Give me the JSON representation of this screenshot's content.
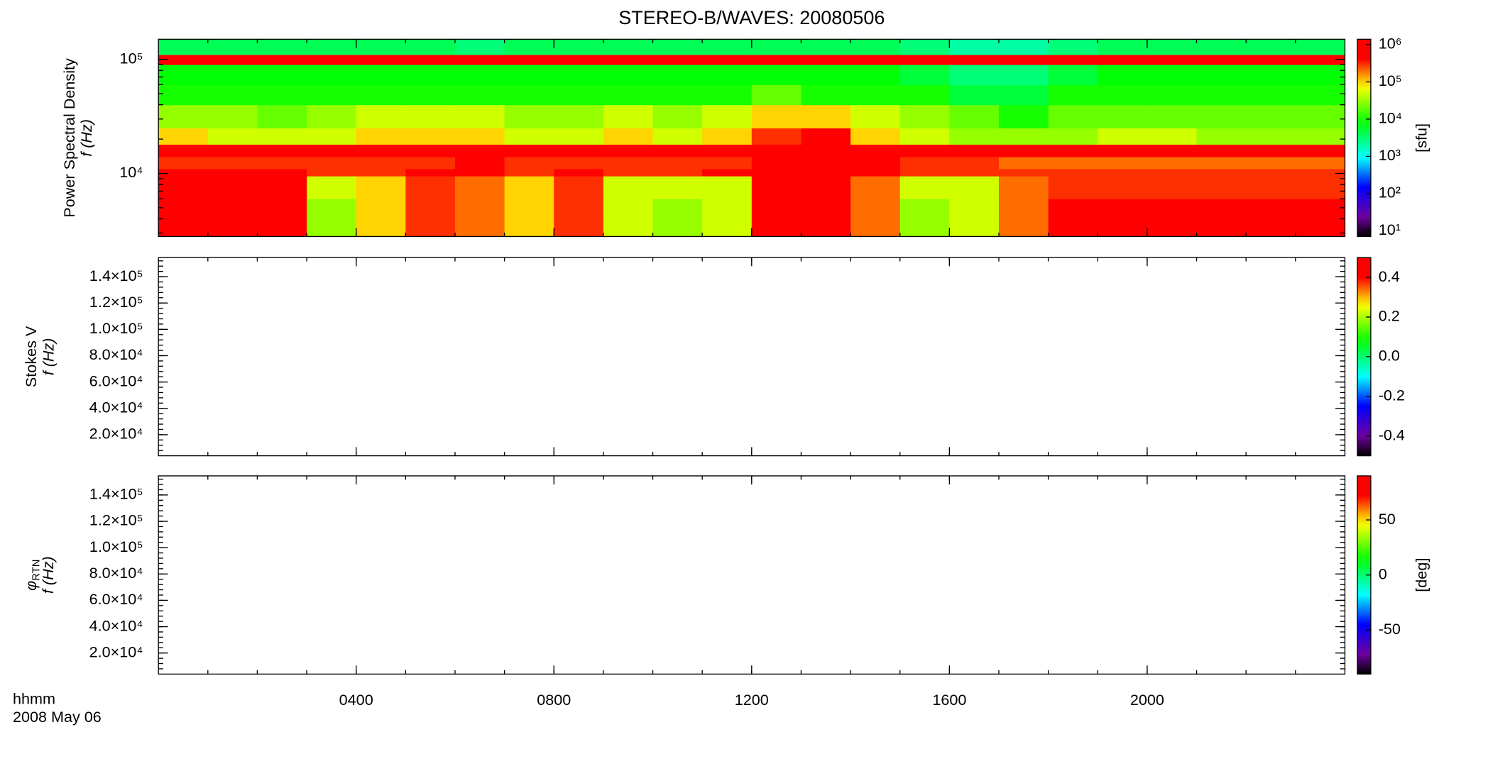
{
  "title": "STEREO-B/WAVES: 20080506",
  "x_label": [
    "hhmm",
    "2008 May 06"
  ],
  "chart_data": [
    {
      "type": "heatmap",
      "y_label": [
        "Power Spectral Density",
        "f (Hz)"
      ],
      "log_y": true,
      "xlim": [
        0,
        24
      ],
      "xticks": [
        {
          "value": 4,
          "label": "0400"
        },
        {
          "value": 8,
          "label": "0800"
        },
        {
          "value": 12,
          "label": "1200"
        },
        {
          "value": 16,
          "label": "1600"
        },
        {
          "value": 20,
          "label": "2000"
        }
      ],
      "ylim": [
        2800,
        150000
      ],
      "yticks": [
        {
          "value": 10000,
          "label": "10⁴"
        },
        {
          "value": 100000,
          "label": "10⁵"
        }
      ],
      "log_color": true,
      "clim": [
        7,
        1400000
      ],
      "cticks": [
        {
          "value": 10,
          "label": "10¹"
        },
        {
          "value": 100,
          "label": "10²"
        },
        {
          "value": 1000,
          "label": "10³"
        },
        {
          "value": 10000,
          "label": "10⁴"
        },
        {
          "value": 100000,
          "label": "10⁵"
        },
        {
          "value": 1000000,
          "label": "10⁶"
        }
      ],
      "color_label": "[sfu]",
      "x_bins": [
        0,
        1,
        2,
        3,
        4,
        5,
        6,
        7,
        8,
        9,
        10,
        11,
        12,
        13,
        14,
        15,
        16,
        17,
        18,
        19,
        20,
        21,
        22,
        23,
        24
      ],
      "y_bins": [
        2800,
        4000,
        6000,
        9500,
        11000,
        14000,
        18000,
        25000,
        40000,
        60000,
        90000,
        110000,
        150000
      ],
      "values": [
        [
          1000000.0,
          1000000.0,
          1000000.0,
          30000.0,
          100000.0,
          300000.0,
          200000.0,
          100000.0,
          300000.0,
          50000.0,
          30000.0,
          50000.0,
          1000000.0,
          1000000.0,
          200000.0,
          30000.0,
          50000.0,
          200000.0,
          500000.0,
          500000.0,
          500000.0,
          500000.0,
          500000.0,
          500000.0
        ],
        [
          1000000.0,
          1000000.0,
          1000000.0,
          30000.0,
          100000.0,
          300000.0,
          200000.0,
          100000.0,
          300000.0,
          50000.0,
          30000.0,
          50000.0,
          1000000.0,
          1000000.0,
          200000.0,
          30000.0,
          50000.0,
          200000.0,
          500000.0,
          500000.0,
          500000.0,
          500000.0,
          500000.0,
          500000.0
        ],
        [
          1000000.0,
          1000000.0,
          500000.0,
          50000.0,
          100000.0,
          300000.0,
          200000.0,
          100000.0,
          300000.0,
          50000.0,
          50000.0,
          50000.0,
          500000.0,
          1000000.0,
          200000.0,
          50000.0,
          50000.0,
          200000.0,
          300000.0,
          300000.0,
          300000.0,
          300000.0,
          300000.0,
          300000.0
        ],
        [
          500000.0,
          500000.0,
          500000.0,
          300000.0,
          300000.0,
          500000.0,
          500000.0,
          300000.0,
          500000.0,
          300000.0,
          300000.0,
          500000.0,
          500000.0,
          1000000.0,
          500000.0,
          300000.0,
          300000.0,
          300000.0,
          300000.0,
          300000.0,
          300000.0,
          300000.0,
          300000.0,
          300000.0
        ],
        [
          300000.0,
          300000.0,
          300000.0,
          300000.0,
          300000.0,
          300000.0,
          500000.0,
          300000.0,
          300000.0,
          300000.0,
          300000.0,
          300000.0,
          500000.0,
          500000.0,
          500000.0,
          300000.0,
          300000.0,
          200000.0,
          200000.0,
          200000.0,
          200000.0,
          200000.0,
          200000.0,
          200000.0
        ],
        [
          1000000.0,
          1000000.0,
          1000000.0,
          1000000.0,
          1000000.0,
          1000000.0,
          1000000.0,
          1000000.0,
          1000000.0,
          1000000.0,
          1000000.0,
          1000000.0,
          1000000.0,
          1000000.0,
          1000000.0,
          1000000.0,
          1000000.0,
          1000000.0,
          1000000.0,
          1000000.0,
          1000000.0,
          1000000.0,
          1000000.0,
          1000000.0
        ],
        [
          100000.0,
          50000.0,
          50000.0,
          50000.0,
          100000.0,
          100000.0,
          100000.0,
          50000.0,
          50000.0,
          100000.0,
          50000.0,
          100000.0,
          300000.0,
          500000.0,
          100000.0,
          50000.0,
          30000.0,
          30000.0,
          30000.0,
          50000.0,
          50000.0,
          30000.0,
          30000.0,
          30000.0
        ],
        [
          30000.0,
          30000.0,
          20000.0,
          30000.0,
          50000.0,
          50000.0,
          50000.0,
          30000.0,
          30000.0,
          50000.0,
          30000.0,
          50000.0,
          100000.0,
          100000.0,
          50000.0,
          30000.0,
          20000.0,
          10000.0,
          20000.0,
          20000.0,
          20000.0,
          20000.0,
          20000.0,
          20000.0
        ],
        [
          10000.0,
          10000.0,
          10000.0,
          10000.0,
          10000.0,
          10000.0,
          10000.0,
          10000.0,
          10000.0,
          10000.0,
          10000.0,
          10000.0,
          20000.0,
          10000.0,
          10000.0,
          10000.0,
          5000.0,
          5000.0,
          10000.0,
          10000.0,
          10000.0,
          10000.0,
          10000.0,
          10000.0
        ],
        [
          8000.0,
          8000.0,
          8000.0,
          8000.0,
          8000.0,
          8000.0,
          8000.0,
          8000.0,
          8000.0,
          8000.0,
          8000.0,
          8000.0,
          8000.0,
          8000.0,
          8000.0,
          5000.0,
          3000.0,
          3000.0,
          5000.0,
          8000.0,
          8000.0,
          8000.0,
          8000.0,
          8000.0
        ],
        [
          1000000.0,
          1000000.0,
          1000000.0,
          1000000.0,
          1000000.0,
          1000000.0,
          1000000.0,
          1000000.0,
          1000000.0,
          1000000.0,
          1000000.0,
          1000000.0,
          1000000.0,
          1000000.0,
          1000000.0,
          1000000.0,
          1000000.0,
          1000000.0,
          1000000.0,
          1000000.0,
          1000000.0,
          1000000.0,
          1000000.0,
          1000000.0
        ],
        [
          4000.0,
          4000.0,
          4000.0,
          4000.0,
          4000.0,
          4000.0,
          3000.0,
          4000.0,
          4000.0,
          4000.0,
          4000.0,
          4000.0,
          4000.0,
          4000.0,
          4000.0,
          3000.0,
          2000.0,
          2000.0,
          3000.0,
          4000.0,
          4000.0,
          4000.0,
          4000.0,
          4000.0
        ]
      ]
    },
    {
      "type": "heatmap",
      "y_label": [
        "Stokes V",
        "f (Hz)"
      ],
      "log_y": false,
      "xlim": [
        0,
        24
      ],
      "xticks": [
        {
          "value": 4,
          "label": "0400"
        },
        {
          "value": 8,
          "label": "0800"
        },
        {
          "value": 12,
          "label": "1200"
        },
        {
          "value": 16,
          "label": "1600"
        },
        {
          "value": 20,
          "label": "2000"
        }
      ],
      "ylim": [
        4000,
        154500
      ],
      "yticks": [
        {
          "value": 20000,
          "label": "2.0×10⁴"
        },
        {
          "value": 40000,
          "label": "4.0×10⁴"
        },
        {
          "value": 60000,
          "label": "6.0×10⁴"
        },
        {
          "value": 80000,
          "label": "8.0×10⁴"
        },
        {
          "value": 100000,
          "label": "1.0×10⁵"
        },
        {
          "value": 120000,
          "label": "1.2×10⁵"
        },
        {
          "value": 140000,
          "label": "1.4×10⁵"
        }
      ],
      "log_color": false,
      "clim": [
        -0.5,
        0.5
      ],
      "cticks": [
        -0.4,
        -0.2,
        {
          "value": 0,
          "label": "0.0"
        },
        0.2,
        0.4
      ]
    },
    {
      "type": "heatmap",
      "y_label": [
        "φ",
        "f (Hz)"
      ],
      "y_label_subscript": "RTN",
      "log_y": false,
      "xlim": [
        0,
        24
      ],
      "xticks": [
        {
          "value": 4,
          "label": "0400"
        },
        {
          "value": 8,
          "label": "0800"
        },
        {
          "value": 12,
          "label": "1200"
        },
        {
          "value": 16,
          "label": "1600"
        },
        {
          "value": 20,
          "label": "2000"
        }
      ],
      "ylim": [
        4000,
        154500
      ],
      "yticks": [
        {
          "value": 20000,
          "label": "2.0×10⁴"
        },
        {
          "value": 40000,
          "label": "4.0×10⁴"
        },
        {
          "value": 60000,
          "label": "6.0×10⁴"
        },
        {
          "value": 80000,
          "label": "8.0×10⁴"
        },
        {
          "value": 100000,
          "label": "1.0×10⁵"
        },
        {
          "value": 120000,
          "label": "1.2×10⁵"
        },
        {
          "value": 140000,
          "label": "1.4×10⁵"
        }
      ],
      "log_color": false,
      "clim": [
        -90,
        90
      ],
      "cticks": [
        -50,
        0,
        50
      ],
      "color_label": "[deg]"
    }
  ]
}
